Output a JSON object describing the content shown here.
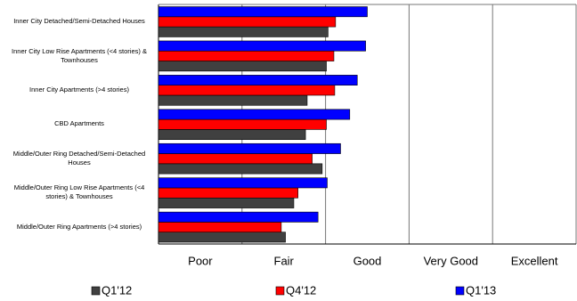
{
  "chart_data": {
    "type": "hbar",
    "categories": [
      "Inner City Detached/Semi-Detached Houses",
      "Inner City Low Rise Apartments (<4 stories) & Townhouses",
      "Inner City Apartments (>4 stories)",
      "CBD Apartments",
      "Middle/Outer Ring Detached/Semi-Detached Houses",
      "Middle/Outer Ring Low Rise Apartments (<4 stories) & Townhouses",
      "Middle/Outer Ring Apartments (>4 stories)"
    ],
    "series": [
      {
        "name": "Q1'12",
        "color": "#404040",
        "values": [
          2.03,
          2.01,
          1.78,
          1.76,
          1.96,
          1.62,
          1.52
        ]
      },
      {
        "name": "Q4'12",
        "color": "#ff0000",
        "values": [
          2.12,
          2.1,
          2.11,
          2.01,
          1.84,
          1.67,
          1.47
        ]
      },
      {
        "name": "Q1'13",
        "color": "#0000ff",
        "values": [
          2.5,
          2.48,
          2.38,
          2.29,
          2.18,
          2.02,
          1.91
        ]
      }
    ],
    "xlim": [
      0,
      5
    ],
    "xticks": [
      {
        "value": 0.5,
        "label": "Poor"
      },
      {
        "value": 1.5,
        "label": "Fair"
      },
      {
        "value": 2.5,
        "label": "Good"
      },
      {
        "value": 3.5,
        "label": "Very Good"
      },
      {
        "value": 4.5,
        "label": "Excellent"
      }
    ],
    "xgrid": [
      0,
      1,
      2,
      3,
      4,
      5
    ],
    "legend": "bottom"
  }
}
